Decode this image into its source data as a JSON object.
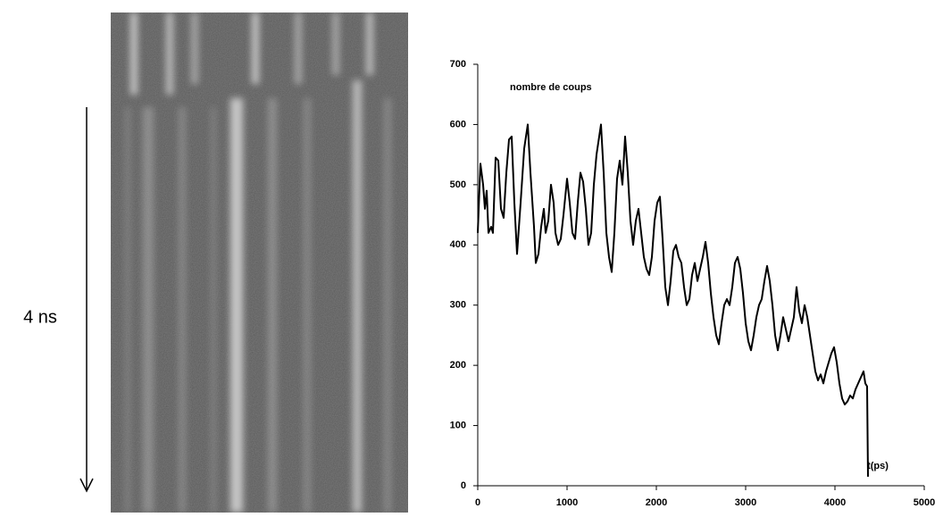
{
  "image_label": "4 ns",
  "chart_data": {
    "type": "line",
    "title": "nombre de coups",
    "x_label": "t(ps)",
    "xlim": [
      0,
      5000
    ],
    "xticks": [
      0,
      1000,
      2000,
      3000,
      4000,
      5000
    ],
    "ylim": [
      0,
      700
    ],
    "yticks": [
      0,
      100,
      200,
      300,
      400,
      500,
      600,
      700
    ],
    "grid": false,
    "series": [
      {
        "color": "#000000",
        "x": [
          0,
          30,
          60,
          80,
          100,
          120,
          150,
          170,
          200,
          230,
          260,
          290,
          320,
          350,
          380,
          410,
          440,
          480,
          520,
          560,
          590,
          630,
          650,
          680,
          710,
          740,
          760,
          790,
          820,
          850,
          870,
          900,
          930,
          960,
          1000,
          1030,
          1060,
          1090,
          1120,
          1150,
          1180,
          1210,
          1240,
          1270,
          1300,
          1330,
          1360,
          1380,
          1410,
          1440,
          1470,
          1500,
          1530,
          1560,
          1590,
          1620,
          1650,
          1680,
          1710,
          1740,
          1770,
          1800,
          1830,
          1860,
          1890,
          1920,
          1950,
          1980,
          2010,
          2040,
          2070,
          2100,
          2130,
          2160,
          2190,
          2220,
          2250,
          2280,
          2310,
          2340,
          2370,
          2400,
          2430,
          2460,
          2490,
          2520,
          2550,
          2580,
          2610,
          2640,
          2670,
          2700,
          2730,
          2760,
          2790,
          2820,
          2850,
          2880,
          2910,
          2940,
          2970,
          3000,
          3030,
          3060,
          3090,
          3120,
          3150,
          3180,
          3210,
          3240,
          3270,
          3300,
          3330,
          3360,
          3390,
          3420,
          3450,
          3480,
          3510,
          3540,
          3570,
          3600,
          3630,
          3660,
          3690,
          3720,
          3750,
          3780,
          3810,
          3840,
          3870,
          3900,
          3930,
          3960,
          3990,
          4020,
          4050,
          4080,
          4110,
          4140,
          4170,
          4200,
          4230,
          4260,
          4290,
          4320,
          4340,
          4360,
          4370
        ],
        "values": [
          420,
          535,
          500,
          460,
          490,
          420,
          430,
          420,
          545,
          540,
          460,
          445,
          520,
          575,
          580,
          470,
          385,
          470,
          560,
          600,
          520,
          430,
          370,
          385,
          430,
          460,
          420,
          440,
          500,
          470,
          420,
          400,
          410,
          450,
          510,
          470,
          420,
          410,
          470,
          520,
          505,
          460,
          400,
          420,
          500,
          550,
          580,
          600,
          520,
          420,
          380,
          355,
          420,
          510,
          540,
          500,
          580,
          520,
          440,
          400,
          440,
          460,
          420,
          380,
          360,
          350,
          380,
          440,
          470,
          480,
          410,
          330,
          300,
          340,
          390,
          400,
          380,
          370,
          330,
          300,
          310,
          350,
          370,
          340,
          360,
          380,
          405,
          370,
          320,
          280,
          250,
          235,
          270,
          300,
          310,
          300,
          330,
          370,
          380,
          360,
          320,
          270,
          240,
          225,
          250,
          280,
          300,
          310,
          340,
          365,
          340,
          300,
          250,
          225,
          250,
          280,
          260,
          240,
          260,
          280,
          330,
          290,
          270,
          300,
          280,
          250,
          220,
          190,
          175,
          185,
          170,
          190,
          205,
          220,
          230,
          205,
          170,
          145,
          135,
          140,
          150,
          145,
          160,
          170,
          180,
          190,
          170,
          165,
          15
        ]
      }
    ]
  }
}
